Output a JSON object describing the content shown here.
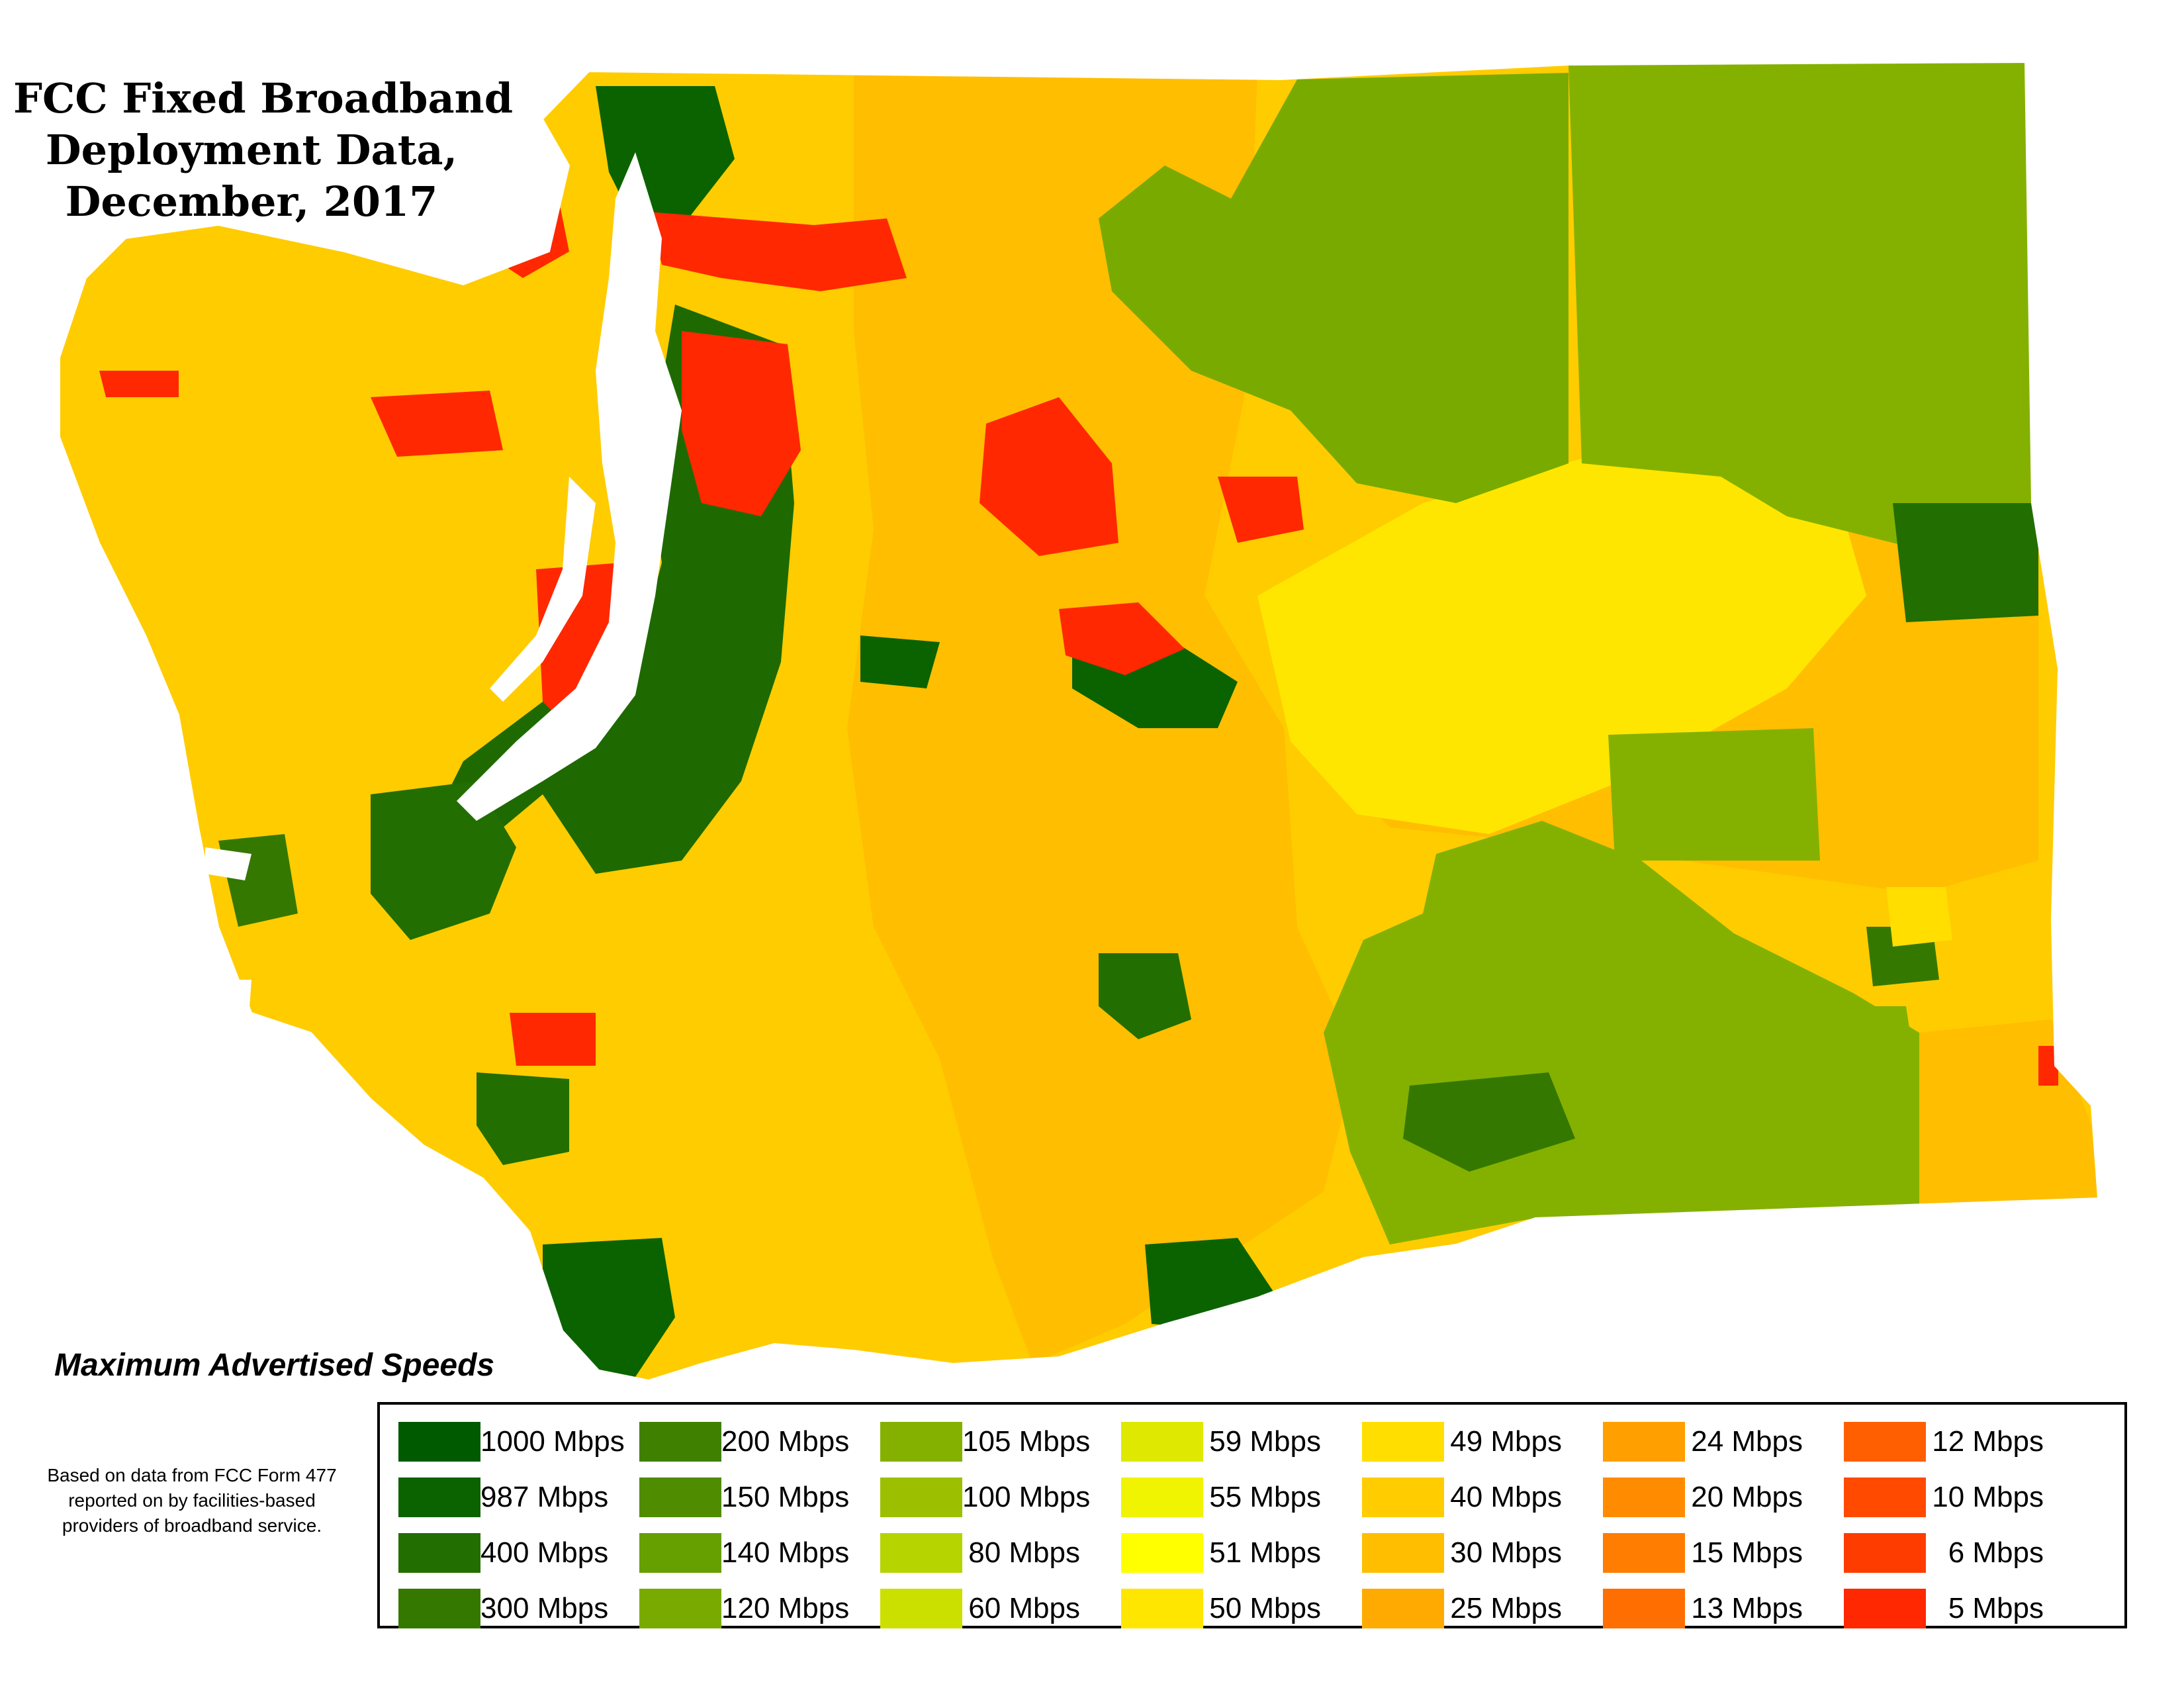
{
  "title": {
    "line1": "FCC Fixed Broadband",
    "line2": "Deployment Data,",
    "line3": "December, 2017"
  },
  "legend": {
    "heading": "Maximum Advertised Speeds",
    "items": [
      {
        "label": "1000 Mbps",
        "color": "#005a00"
      },
      {
        "label": "987 Mbps",
        "color": "#0b6300"
      },
      {
        "label": "400 Mbps",
        "color": "#226e00"
      },
      {
        "label": "300 Mbps",
        "color": "#357800"
      },
      {
        "label": "200 Mbps",
        "color": "#3f8000"
      },
      {
        "label": "150 Mbps",
        "color": "#4f8c00"
      },
      {
        "label": "140 Mbps",
        "color": "#66a000"
      },
      {
        "label": "120 Mbps",
        "color": "#79aa00"
      },
      {
        "label": "105 Mbps",
        "color": "#84b100"
      },
      {
        "label": "100 Mbps",
        "color": "#9cc000"
      },
      {
        "label": "80 Mbps",
        "color": "#b5d400"
      },
      {
        "label": "60 Mbps",
        "color": "#cce000"
      },
      {
        "label": "59 Mbps",
        "color": "#dfe800"
      },
      {
        "label": "55 Mbps",
        "color": "#f0f400"
      },
      {
        "label": "51 Mbps",
        "color": "#ffff00"
      },
      {
        "label": "50 Mbps",
        "color": "#ffe600"
      },
      {
        "label": "49 Mbps",
        "color": "#ffde00"
      },
      {
        "label": "40 Mbps",
        "color": "#ffcc00"
      },
      {
        "label": "30 Mbps",
        "color": "#ffbe00"
      },
      {
        "label": "25 Mbps",
        "color": "#ffaa00"
      },
      {
        "label": "24 Mbps",
        "color": "#ff9f00"
      },
      {
        "label": "20 Mbps",
        "color": "#ff8c00"
      },
      {
        "label": "15 Mbps",
        "color": "#ff7d00"
      },
      {
        "label": "13 Mbps",
        "color": "#ff6e00"
      },
      {
        "label": "12 Mbps",
        "color": "#ff5f00"
      },
      {
        "label": "10 Mbps",
        "color": "#ff4a00"
      },
      {
        "label": "6 Mbps",
        "color": "#ff3c00"
      },
      {
        "label": "5 Mbps",
        "color": "#ff2800"
      }
    ]
  },
  "source_note": "Based on data from FCC Form 477 reported on by facilities-based providers of broadband service."
}
